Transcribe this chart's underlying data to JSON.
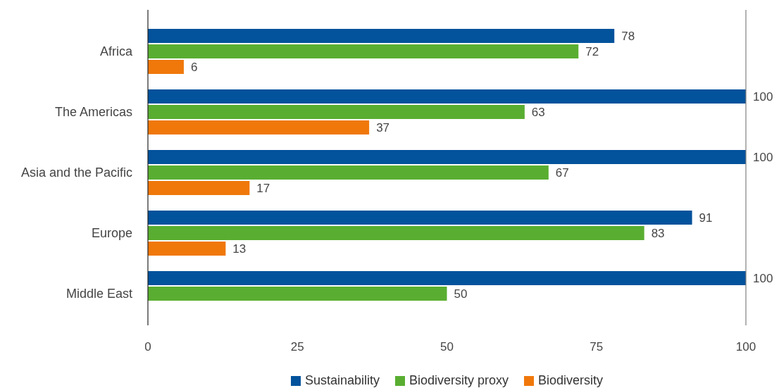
{
  "chart_data": {
    "type": "bar",
    "orientation": "horizontal",
    "categories": [
      "Africa",
      "The Americas",
      "Asia and the Pacific",
      "Europe",
      "Middle East"
    ],
    "series": [
      {
        "name": "Sustainability",
        "color": "#02529c",
        "values": [
          78,
          100,
          100,
          91,
          100
        ]
      },
      {
        "name": "Biodiversity proxy",
        "color": "#59ae31",
        "values": [
          72,
          63,
          67,
          83,
          50
        ]
      },
      {
        "name": "Biodiversity",
        "color": "#f0780b",
        "values": [
          6,
          37,
          17,
          13,
          null
        ]
      }
    ],
    "xlim": [
      0,
      100
    ],
    "xticks": [
      0,
      25,
      50,
      75,
      100
    ],
    "data_labels": true,
    "legend": "bottom",
    "ref_lines": [
      {
        "axis": "x",
        "value": 100,
        "color": "#7f7f7f"
      }
    ]
  }
}
